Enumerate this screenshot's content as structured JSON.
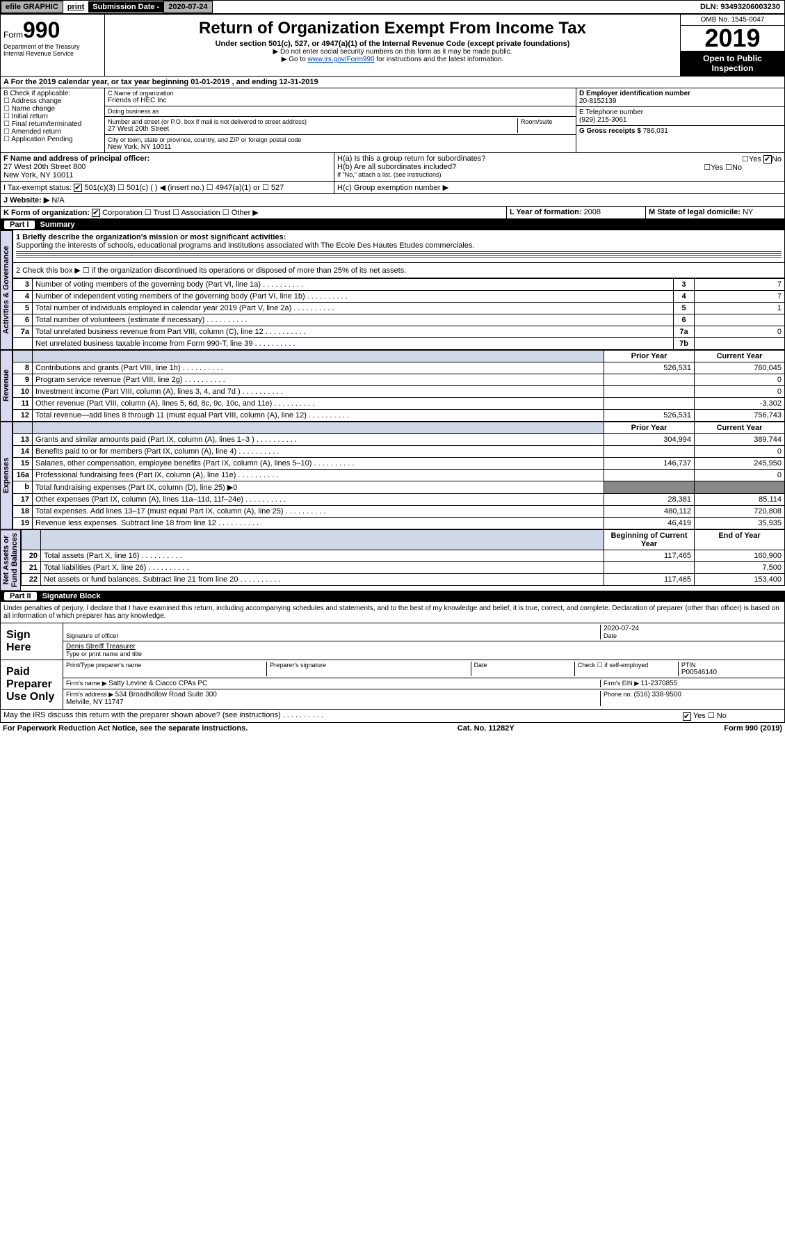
{
  "topbar": {
    "efile": "efile GRAPHIC",
    "print": "print",
    "sub_label": "Submission Date - ",
    "sub_date": "2020-07-24",
    "dln": "DLN: 93493206003230"
  },
  "header": {
    "form_word": "Form",
    "form_num": "990",
    "title": "Return of Organization Exempt From Income Tax",
    "subtitle": "Under section 501(c), 527, or 4947(a)(1) of the Internal Revenue Code (except private foundations)",
    "note1": "▶ Do not enter social security numbers on this form as it may be made public.",
    "note2_pre": "▶ Go to ",
    "note2_link": "www.irs.gov/Form990",
    "note2_post": " for instructions and the latest information.",
    "omb": "OMB No. 1545-0047",
    "year": "2019",
    "inspect": "Open to Public Inspection",
    "dept": "Department of the Treasury\nInternal Revenue Service"
  },
  "period": "A For the 2019 calendar year, or tax year beginning 01-01-2019    , and ending 12-31-2019",
  "boxB": {
    "label": "B Check if applicable:",
    "opts": [
      "Address change",
      "Name change",
      "Initial return",
      "Final return/terminated",
      "Amended return",
      "Application Pending"
    ]
  },
  "boxC": {
    "name_label": "C Name of organization",
    "name": "Friends of HEC Inc",
    "dba_label": "Doing business as",
    "addr_label": "Number and street (or P.O. box if mail is not delivered to street address)",
    "room_label": "Room/suite",
    "addr": "27 West 20th Street",
    "city_label": "City or town, state or province, country, and ZIP or foreign postal code",
    "city": "New York, NY  10011"
  },
  "boxD": {
    "label": "D Employer identification number",
    "val": "20-8152139"
  },
  "boxE": {
    "label": "E Telephone number",
    "val": "(929) 215-3061"
  },
  "boxG": {
    "label": "G Gross receipts $ ",
    "val": "786,031"
  },
  "boxF": {
    "label": "F Name and address of principal officer:",
    "addr1": "27 West 20th Street 800",
    "addr2": "New York, NY  10011"
  },
  "boxH": {
    "a": "H(a)  Is this a group return for subordinates?",
    "b": "H(b)  Are all subordinates included?",
    "bnote": "If \"No,\" attach a list. (see instructions)",
    "c": "H(c)  Group exemption number ▶",
    "yes": "Yes",
    "no": "No"
  },
  "boxI": {
    "label": "I    Tax-exempt status:",
    "o1": "501(c)(3)",
    "o2": "501(c) (  ) ◀ (insert no.)",
    "o3": "4947(a)(1) or",
    "o4": "527"
  },
  "boxJ": {
    "label": "J   Website: ▶",
    "val": "N/A"
  },
  "boxK": {
    "label": "K Form of organization:",
    "o1": "Corporation",
    "o2": "Trust",
    "o3": "Association",
    "o4": "Other ▶"
  },
  "boxL": {
    "label": "L Year of formation: ",
    "val": "2008"
  },
  "boxM": {
    "label": "M State of legal domicile: ",
    "val": "NY"
  },
  "part1": {
    "num": "Part I",
    "title": "Summary"
  },
  "summary": {
    "l1_label": "1  Briefly describe the organization's mission or most significant activities:",
    "l1_text": "Supporting the interests of schools, educational programs and institutions associated with The Ecole Des Hautes Etudes commerciales.",
    "l2": "2    Check this box ▶ ☐  if the organization discontinued its operations or disposed of more than 25% of its net assets.",
    "rows_a": [
      {
        "n": "3",
        "t": "Number of voting members of the governing body (Part VI, line 1a)",
        "ln": "3",
        "v": "7"
      },
      {
        "n": "4",
        "t": "Number of independent voting members of the governing body (Part VI, line 1b)",
        "ln": "4",
        "v": "7"
      },
      {
        "n": "5",
        "t": "Total number of individuals employed in calendar year 2019 (Part V, line 2a)",
        "ln": "5",
        "v": "1"
      },
      {
        "n": "6",
        "t": "Total number of volunteers (estimate if necessary)",
        "ln": "6",
        "v": ""
      },
      {
        "n": "7a",
        "t": "Total unrelated business revenue from Part VIII, column (C), line 12",
        "ln": "7a",
        "v": "0"
      },
      {
        "n": "",
        "t": "Net unrelated business taxable income from Form 990-T, line 39",
        "ln": "7b",
        "v": ""
      }
    ],
    "col_prior": "Prior Year",
    "col_curr": "Current Year",
    "rows_rev": [
      {
        "n": "8",
        "t": "Contributions and grants (Part VIII, line 1h)",
        "p": "526,531",
        "c": "760,045"
      },
      {
        "n": "9",
        "t": "Program service revenue (Part VIII, line 2g)",
        "p": "",
        "c": "0"
      },
      {
        "n": "10",
        "t": "Investment income (Part VIII, column (A), lines 3, 4, and 7d )",
        "p": "",
        "c": "0"
      },
      {
        "n": "11",
        "t": "Other revenue (Part VIII, column (A), lines 5, 6d, 8c, 9c, 10c, and 11e)",
        "p": "",
        "c": "-3,302"
      },
      {
        "n": "12",
        "t": "Total revenue—add lines 8 through 11 (must equal Part VIII, column (A), line 12)",
        "p": "526,531",
        "c": "756,743"
      }
    ],
    "rows_exp": [
      {
        "n": "13",
        "t": "Grants and similar amounts paid (Part IX, column (A), lines 1–3 )",
        "p": "304,994",
        "c": "389,744"
      },
      {
        "n": "14",
        "t": "Benefits paid to or for members (Part IX, column (A), line 4)",
        "p": "",
        "c": "0"
      },
      {
        "n": "15",
        "t": "Salaries, other compensation, employee benefits (Part IX, column (A), lines 5–10)",
        "p": "146,737",
        "c": "245,950"
      },
      {
        "n": "16a",
        "t": "Professional fundraising fees (Part IX, column (A), line 11e)",
        "p": "",
        "c": "0"
      },
      {
        "n": "b",
        "t": "Total fundraising expenses (Part IX, column (D), line 25) ▶0",
        "p": "—",
        "c": "—"
      },
      {
        "n": "17",
        "t": "Other expenses (Part IX, column (A), lines 11a–11d, 11f–24e)",
        "p": "28,381",
        "c": "85,114"
      },
      {
        "n": "18",
        "t": "Total expenses. Add lines 13–17 (must equal Part IX, column (A), line 25)",
        "p": "480,112",
        "c": "720,808"
      },
      {
        "n": "19",
        "t": "Revenue less expenses. Subtract line 18 from line 12",
        "p": "46,419",
        "c": "35,935"
      }
    ],
    "col_beg": "Beginning of Current Year",
    "col_end": "End of Year",
    "rows_net": [
      {
        "n": "20",
        "t": "Total assets (Part X, line 16)",
        "p": "117,465",
        "c": "160,900"
      },
      {
        "n": "21",
        "t": "Total liabilities (Part X, line 26)",
        "p": "",
        "c": "7,500"
      },
      {
        "n": "22",
        "t": "Net assets or fund balances. Subtract line 21 from line 20",
        "p": "117,465",
        "c": "153,400"
      }
    ]
  },
  "sidelabels": {
    "ag": "Activities & Governance",
    "rev": "Revenue",
    "exp": "Expenses",
    "net": "Net Assets or\nFund Balances"
  },
  "part2": {
    "num": "Part II",
    "title": "Signature Block"
  },
  "perjury": "Under penalties of perjury, I declare that I have examined this return, including accompanying schedules and statements, and to the best of my knowledge and belief, it is true, correct, and complete. Declaration of preparer (other than officer) is based on all information of which preparer has any knowledge.",
  "sign": {
    "here": "Sign Here",
    "sig_officer": "Signature of officer",
    "date": "2020-07-24",
    "date_label": "Date",
    "name": "Denis Streiff Treasurer",
    "name_label": "Type or print name and title"
  },
  "prep": {
    "label": "Paid Preparer Use Only",
    "h1": "Print/Type preparer's name",
    "h2": "Preparer's signature",
    "h3": "Date",
    "h4_a": "Check ☐ if self-employed",
    "h5": "PTIN",
    "ptin": "P00546140",
    "firm_label": "Firm's name    ▶ ",
    "firm": "Satty Levine & Ciacco CPAs PC",
    "ein_label": "Firm's EIN ▶ ",
    "ein": "11-2370855",
    "addr_label": "Firm's address ▶ ",
    "addr": "534 Broadhollow Road Suite 300\nMelville, NY  11747",
    "phone_label": "Phone no. ",
    "phone": "(516) 338-9500"
  },
  "discuss": "May the IRS discuss this return with the preparer shown above? (see instructions)",
  "footer": {
    "left": "For Paperwork Reduction Act Notice, see the separate instructions.",
    "mid": "Cat. No. 11282Y",
    "right": "Form 990 (2019)"
  }
}
